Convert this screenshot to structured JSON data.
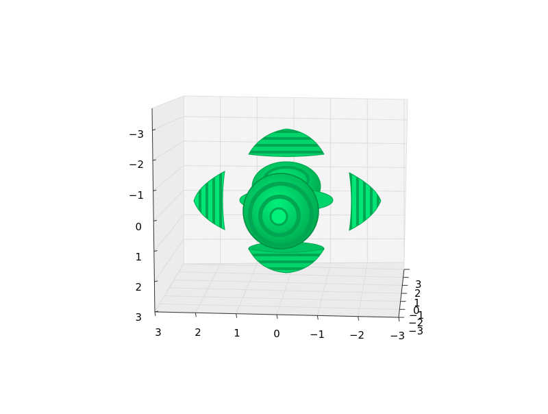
{
  "chart_data": {
    "type": "3d-surface",
    "title": "",
    "xlabel": "",
    "ylabel": "",
    "zlabel": "",
    "x_ticks": [
      "3",
      "2",
      "1",
      "0",
      "−1",
      "−2",
      "−3"
    ],
    "y_ticks": [
      "3",
      "2",
      "1",
      "0",
      "−1",
      "−2",
      "−3"
    ],
    "z_ticks": [
      "−3",
      "−2",
      "−1",
      "0",
      "1",
      "2",
      "3"
    ],
    "xlim": [
      -3,
      3
    ],
    "ylim": [
      -3,
      3
    ],
    "zlim": [
      -3,
      3
    ],
    "grid": true,
    "surface_color": "#00e676",
    "surface_dark": "#00a651",
    "pane_color": "#f4f4f4",
    "surfaces": [
      "central sphere",
      "top cap",
      "bottom cap",
      "left cap",
      "right cap",
      "inner ring"
    ]
  }
}
